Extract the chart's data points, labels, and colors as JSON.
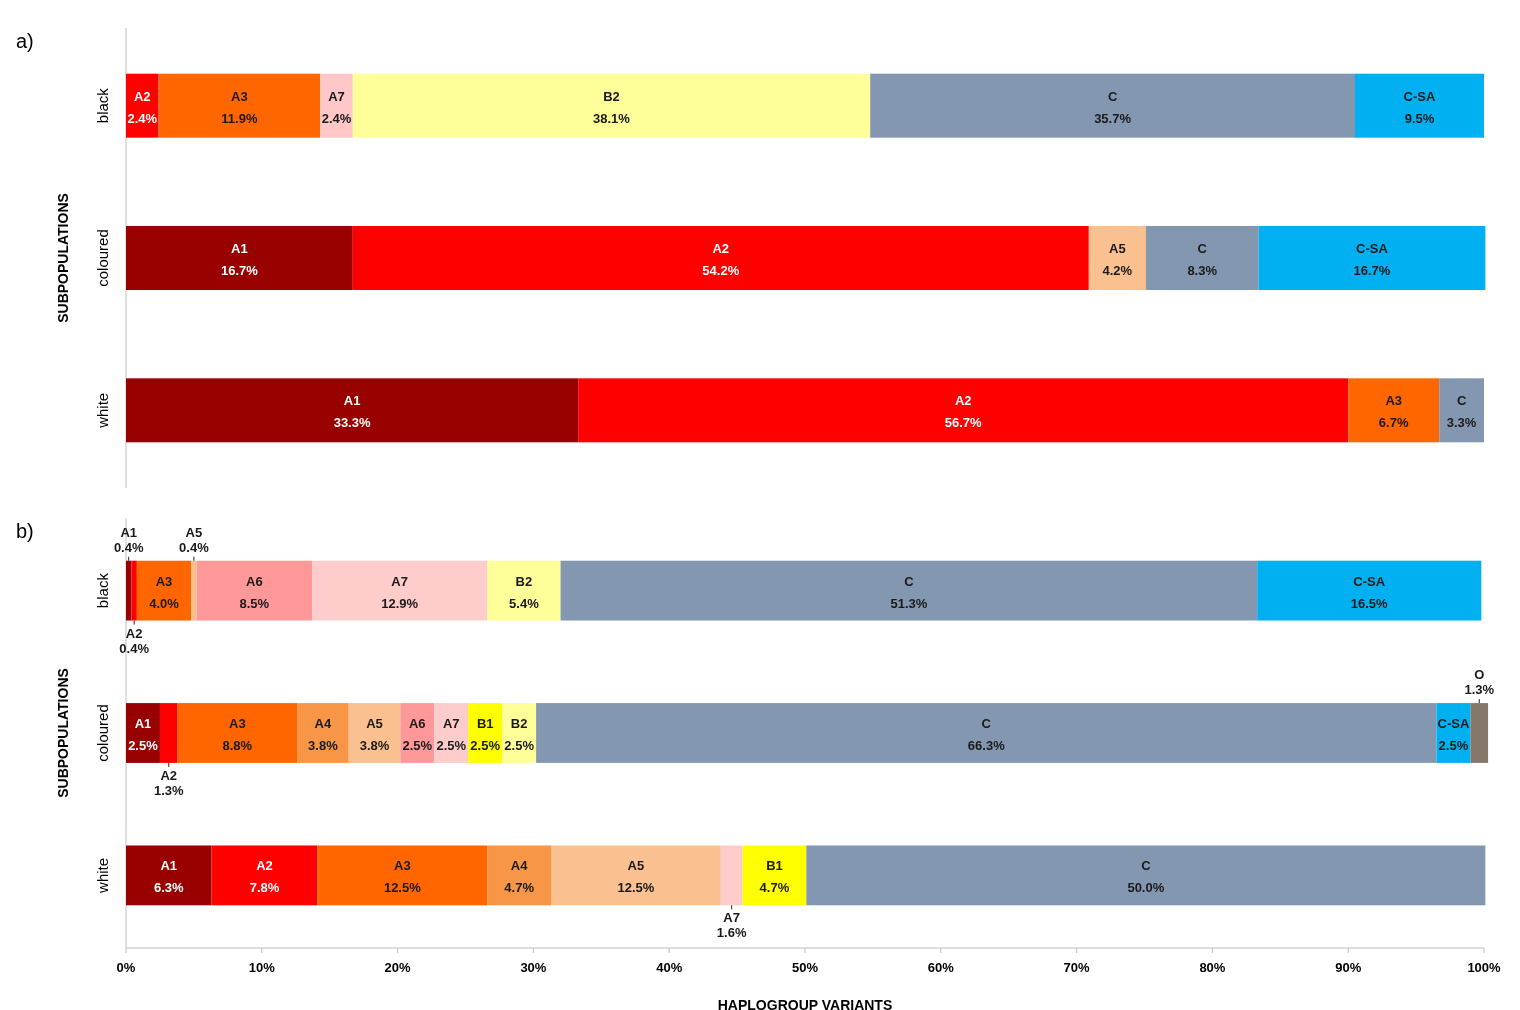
{
  "chart_data": [
    {
      "type": "bar",
      "orientation": "horizontal",
      "stacked": true,
      "annotations": [
        "a)"
      ],
      "ylabel": "SUBPOPULATIONS",
      "categories": [
        "black",
        "coloured",
        "white"
      ],
      "xlim": [
        0,
        100
      ],
      "tick_labels": "y",
      "series": [
        {
          "name": "A1",
          "color": "#990000",
          "values": [
            null,
            16.7,
            33.3
          ],
          "value_labels": [
            null,
            "16.7%",
            "33.3%"
          ]
        },
        {
          "name": "A2",
          "color": "#ff0000",
          "values": [
            2.4,
            54.2,
            56.7
          ],
          "value_labels": [
            "2.4%",
            "54.2%",
            "56.7%"
          ]
        },
        {
          "name": "A3",
          "color": "#ff6600",
          "values": [
            11.9,
            null,
            6.7
          ],
          "value_labels": [
            "11.9%",
            null,
            "6.7%"
          ]
        },
        {
          "name": "A5",
          "color": "#fac090",
          "values": [
            null,
            4.2,
            null
          ],
          "value_labels": [
            null,
            "4.2%",
            null
          ]
        },
        {
          "name": "A7",
          "color": "#ffc7c7",
          "values": [
            2.4,
            null,
            null
          ],
          "value_labels": [
            "2.4%",
            null,
            null
          ]
        },
        {
          "name": "B2",
          "color": "#ffff99",
          "values": [
            38.1,
            null,
            null
          ],
          "value_labels": [
            "38.1%",
            null,
            null
          ]
        },
        {
          "name": "C",
          "color": "#8497b0",
          "values": [
            35.7,
            8.3,
            3.3
          ],
          "value_labels": [
            "35.7%",
            "8.3%",
            "3.3%"
          ]
        },
        {
          "name": "C-SA",
          "color": "#00b0f0",
          "values": [
            9.5,
            16.7,
            null
          ],
          "value_labels": [
            "9.5%",
            "16.7%",
            null
          ]
        }
      ]
    },
    {
      "type": "bar",
      "orientation": "horizontal",
      "stacked": true,
      "annotations": [
        "b)"
      ],
      "ylabel": "SUBPOPULATIONS",
      "xlabel": "HAPLOGROUP VARIANTS",
      "categories": [
        "black",
        "coloured",
        "white"
      ],
      "xlim": [
        0,
        100
      ],
      "xticks": [
        {
          "value": 0,
          "label": "0%"
        },
        {
          "value": 10,
          "label": "10%"
        },
        {
          "value": 20,
          "label": "20%"
        },
        {
          "value": 30,
          "label": "30%"
        },
        {
          "value": 40,
          "label": "40%"
        },
        {
          "value": 50,
          "label": "50%"
        },
        {
          "value": 60,
          "label": "60%"
        },
        {
          "value": 70,
          "label": "70%"
        },
        {
          "value": 80,
          "label": "80%"
        },
        {
          "value": 90,
          "label": "90%"
        },
        {
          "value": 100,
          "label": "100%"
        }
      ],
      "series": [
        {
          "name": "A1",
          "color": "#990000",
          "values": [
            0.4,
            2.5,
            6.3
          ],
          "value_labels": [
            "0.4%",
            "2.5%",
            "6.3%"
          ]
        },
        {
          "name": "A2",
          "color": "#ff0000",
          "values": [
            0.4,
            1.3,
            7.8
          ],
          "value_labels": [
            "0.4%",
            "1.3%",
            "7.8%"
          ]
        },
        {
          "name": "A3",
          "color": "#ff6600",
          "values": [
            4.0,
            8.8,
            12.5
          ],
          "value_labels": [
            "4.0%",
            "8.8%",
            "12.5%"
          ]
        },
        {
          "name": "A4",
          "color": "#f79646",
          "values": [
            null,
            3.8,
            4.7
          ],
          "value_labels": [
            null,
            "3.8%",
            "4.7%"
          ]
        },
        {
          "name": "A5",
          "color": "#fac090",
          "values": [
            0.4,
            3.8,
            12.5
          ],
          "value_labels": [
            "0.4%",
            "3.8%",
            "12.5%"
          ]
        },
        {
          "name": "A6",
          "color": "#ff9999",
          "values": [
            8.5,
            2.5,
            null
          ],
          "value_labels": [
            "8.5%",
            "2.5%",
            null
          ]
        },
        {
          "name": "A7",
          "color": "#ffcccc",
          "values": [
            12.9,
            2.5,
            1.6
          ],
          "value_labels": [
            "12.9%",
            "2.5%",
            "1.6%"
          ]
        },
        {
          "name": "B1",
          "color": "#ffff00",
          "values": [
            null,
            2.5,
            4.7
          ],
          "value_labels": [
            null,
            "2.5%",
            "4.7%"
          ]
        },
        {
          "name": "B2",
          "color": "#ffff99",
          "values": [
            5.4,
            2.5,
            null
          ],
          "value_labels": [
            "5.4%",
            "2.5%",
            null
          ]
        },
        {
          "name": "C",
          "color": "#8497b0",
          "values": [
            51.3,
            66.3,
            50.0
          ],
          "value_labels": [
            "51.3%",
            "66.3%",
            "50.0%"
          ]
        },
        {
          "name": "C-SA",
          "color": "#00b0f0",
          "values": [
            16.5,
            2.5,
            null
          ],
          "value_labels": [
            "16.5%",
            "2.5%",
            null
          ]
        },
        {
          "name": "O",
          "color": "#85786a",
          "values": [
            null,
            1.3,
            null
          ],
          "value_labels": [
            null,
            "1.3%",
            null
          ]
        }
      ]
    }
  ]
}
